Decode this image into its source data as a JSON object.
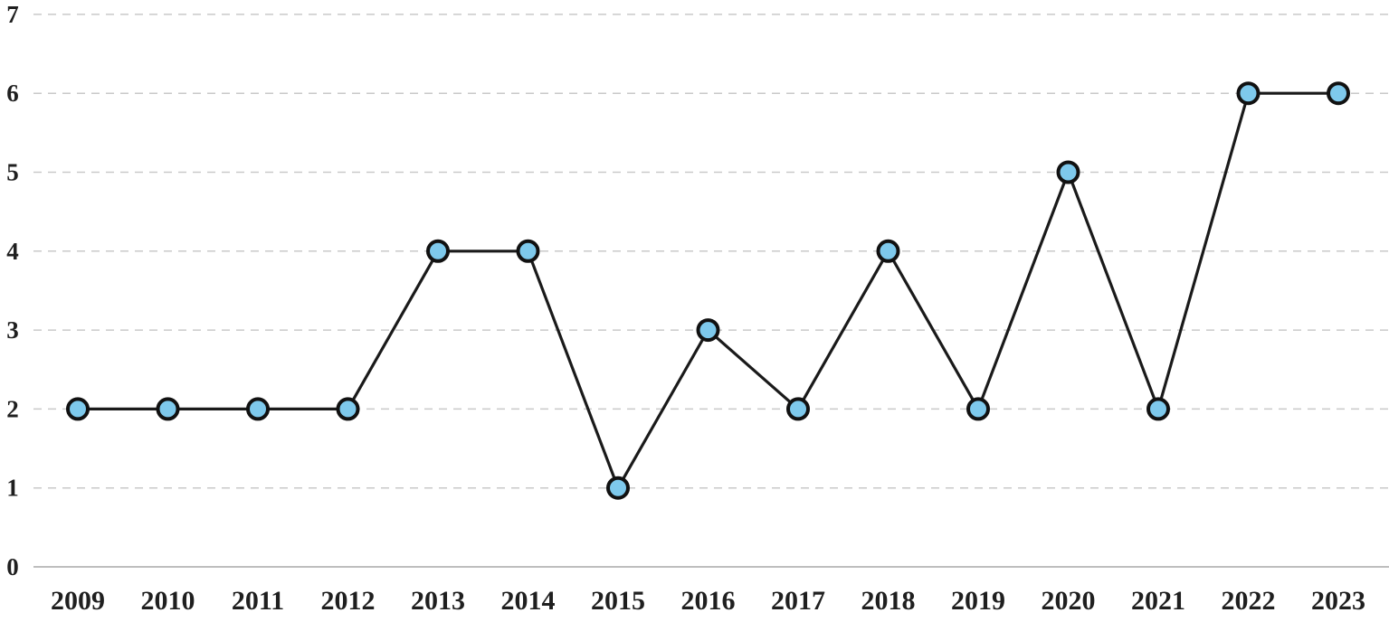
{
  "chart_data": {
    "type": "line",
    "categories": [
      "2009",
      "2010",
      "2011",
      "2012",
      "2013",
      "2014",
      "2015",
      "2016",
      "2017",
      "2018",
      "2019",
      "2020",
      "2021",
      "2022",
      "2023"
    ],
    "values": [
      2,
      2,
      2,
      2,
      4,
      4,
      1,
      3,
      2,
      4,
      2,
      5,
      2,
      6,
      6
    ],
    "series_name": "",
    "title": "",
    "xlabel": "",
    "ylabel": "",
    "ylim": [
      0,
      7
    ],
    "yticks": [
      0,
      1,
      2,
      3,
      4,
      5,
      6,
      7
    ],
    "grid": "horizontal-dashed",
    "legend_position": "none",
    "colors": {
      "line": "#1a1a1a",
      "marker_fill": "#7ec9ec",
      "marker_stroke": "#111111",
      "gridline": "#c9c9c9",
      "zero_axis": "#b5b5b5",
      "label_text": "#1f1f1f",
      "background": "#ffffff"
    }
  }
}
